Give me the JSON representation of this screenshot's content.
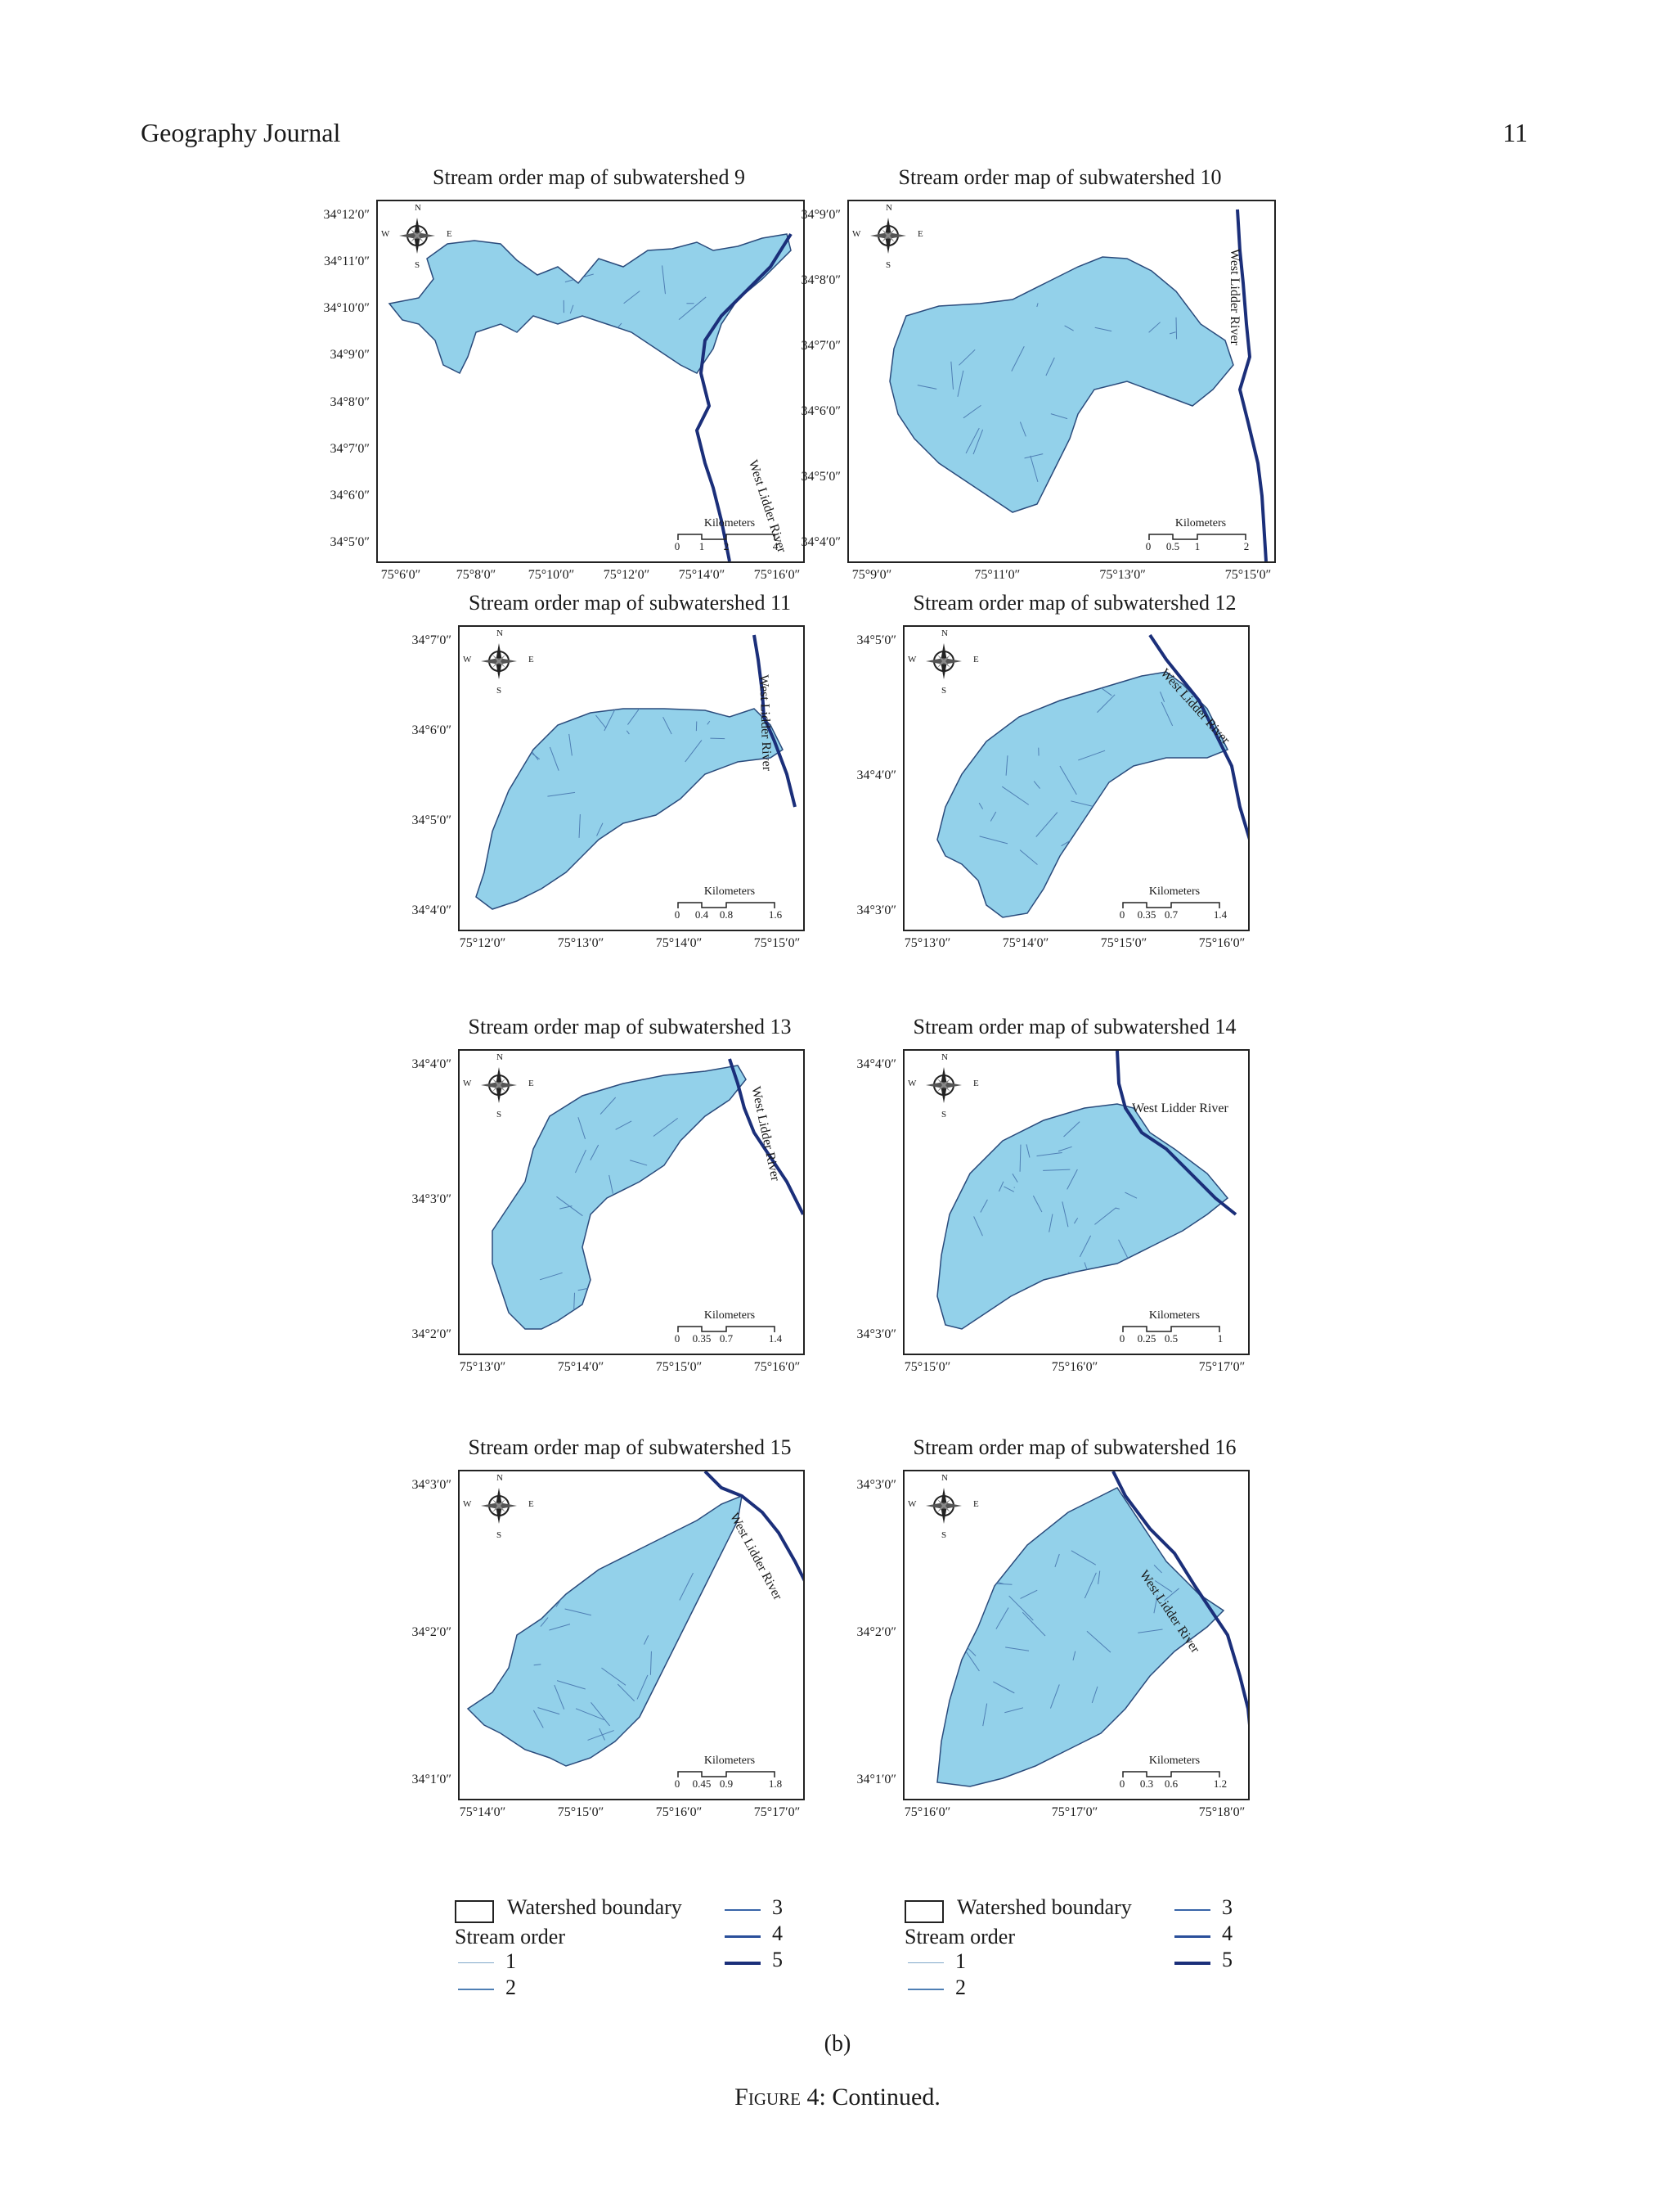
{
  "header": {
    "journal": "Geography Journal",
    "page_number": "11"
  },
  "compass_labels": {
    "n": "N",
    "s": "S",
    "e": "E",
    "w": "W"
  },
  "scale_title": "Kilometers",
  "panels": [
    {
      "title": "Stream order map of subwatershed 9",
      "lats": [
        "34°12′0″",
        "34°11′0″",
        "34°10′0″",
        "34°9′0″",
        "34°8′0″",
        "34°7′0″",
        "34°6′0″",
        "34°5′0″"
      ],
      "lons": [
        "75°6′0″",
        "75°8′0″",
        "75°10′0″",
        "75°12′0″",
        "75°14′0″",
        "75°16′0″"
      ],
      "river": "West Lidder River",
      "scale": [
        "0",
        "1",
        "2",
        "4"
      ]
    },
    {
      "title": "Stream order map of subwatershed 10",
      "lats": [
        "34°9′0″",
        "34°8′0″",
        "34°7′0″",
        "34°6′0″",
        "34°5′0″",
        "34°4′0″"
      ],
      "lons": [
        "75°9′0″",
        "75°11′0″",
        "75°13′0″",
        "75°15′0″"
      ],
      "river": "West Lidder River",
      "scale": [
        "0",
        "0.5",
        "1",
        "2"
      ]
    },
    {
      "title": "Stream order map of subwatershed 11",
      "lats": [
        "34°7′0″",
        "34°6′0″",
        "34°5′0″",
        "34°4′0″"
      ],
      "lons": [
        "75°12′0″",
        "75°13′0″",
        "75°14′0″",
        "75°15′0″"
      ],
      "river": "West Lidder River",
      "scale": [
        "0",
        "0.4",
        "0.8",
        "1.6"
      ]
    },
    {
      "title": "Stream order map of subwatershed 12",
      "lats": [
        "34°5′0″",
        "34°4′0″",
        "34°3′0″"
      ],
      "lons": [
        "75°13′0″",
        "75°14′0″",
        "75°15′0″",
        "75°16′0″"
      ],
      "river": "West Lidder River",
      "scale": [
        "0",
        "0.35",
        "0.7",
        "1.4"
      ]
    },
    {
      "title": "Stream order map of subwatershed 13",
      "lats": [
        "34°4′0″",
        "34°3′0″",
        "34°2′0″"
      ],
      "lons": [
        "75°13′0″",
        "75°14′0″",
        "75°15′0″",
        "75°16′0″"
      ],
      "river": "West Lidder River",
      "scale": [
        "0",
        "0.35",
        "0.7",
        "1.4"
      ]
    },
    {
      "title": "Stream order map of subwatershed 14",
      "lats": [
        "34°4′0″",
        "34°3′0″"
      ],
      "lons": [
        "75°15′0″",
        "75°16′0″",
        "75°17′0″"
      ],
      "river": "West Lidder River",
      "scale": [
        "0",
        "0.25",
        "0.5",
        "1"
      ]
    },
    {
      "title": "Stream order map of subwatershed 15",
      "lats": [
        "34°3′0″",
        "34°2′0″",
        "34°1′0″"
      ],
      "lons": [
        "75°14′0″",
        "75°15′0″",
        "75°16′0″",
        "75°17′0″"
      ],
      "river": "West Lidder River",
      "scale": [
        "0",
        "0.45",
        "0.9",
        "1.8"
      ]
    },
    {
      "title": "Stream order map of subwatershed 16",
      "lats": [
        "34°3′0″",
        "34°2′0″",
        "34°1′0″"
      ],
      "lons": [
        "75°16′0″",
        "75°17′0″",
        "75°18′0″"
      ],
      "river": "West Lidder River",
      "scale": [
        "0",
        "0.3",
        "0.6",
        "1.2"
      ]
    }
  ],
  "legend": {
    "boundary": "Watershed boundary",
    "stream_order": "Stream order",
    "orders": [
      "1",
      "2",
      "3",
      "4",
      "5"
    ]
  },
  "colors": {
    "basin_fill": "#93d1ea",
    "basin_stroke": "#2a4b7c",
    "river": "#1b2f7a"
  },
  "figure": {
    "sublabel": "(b)",
    "caption_prefix": "Figure 4",
    "caption_rest": ": Continued."
  }
}
